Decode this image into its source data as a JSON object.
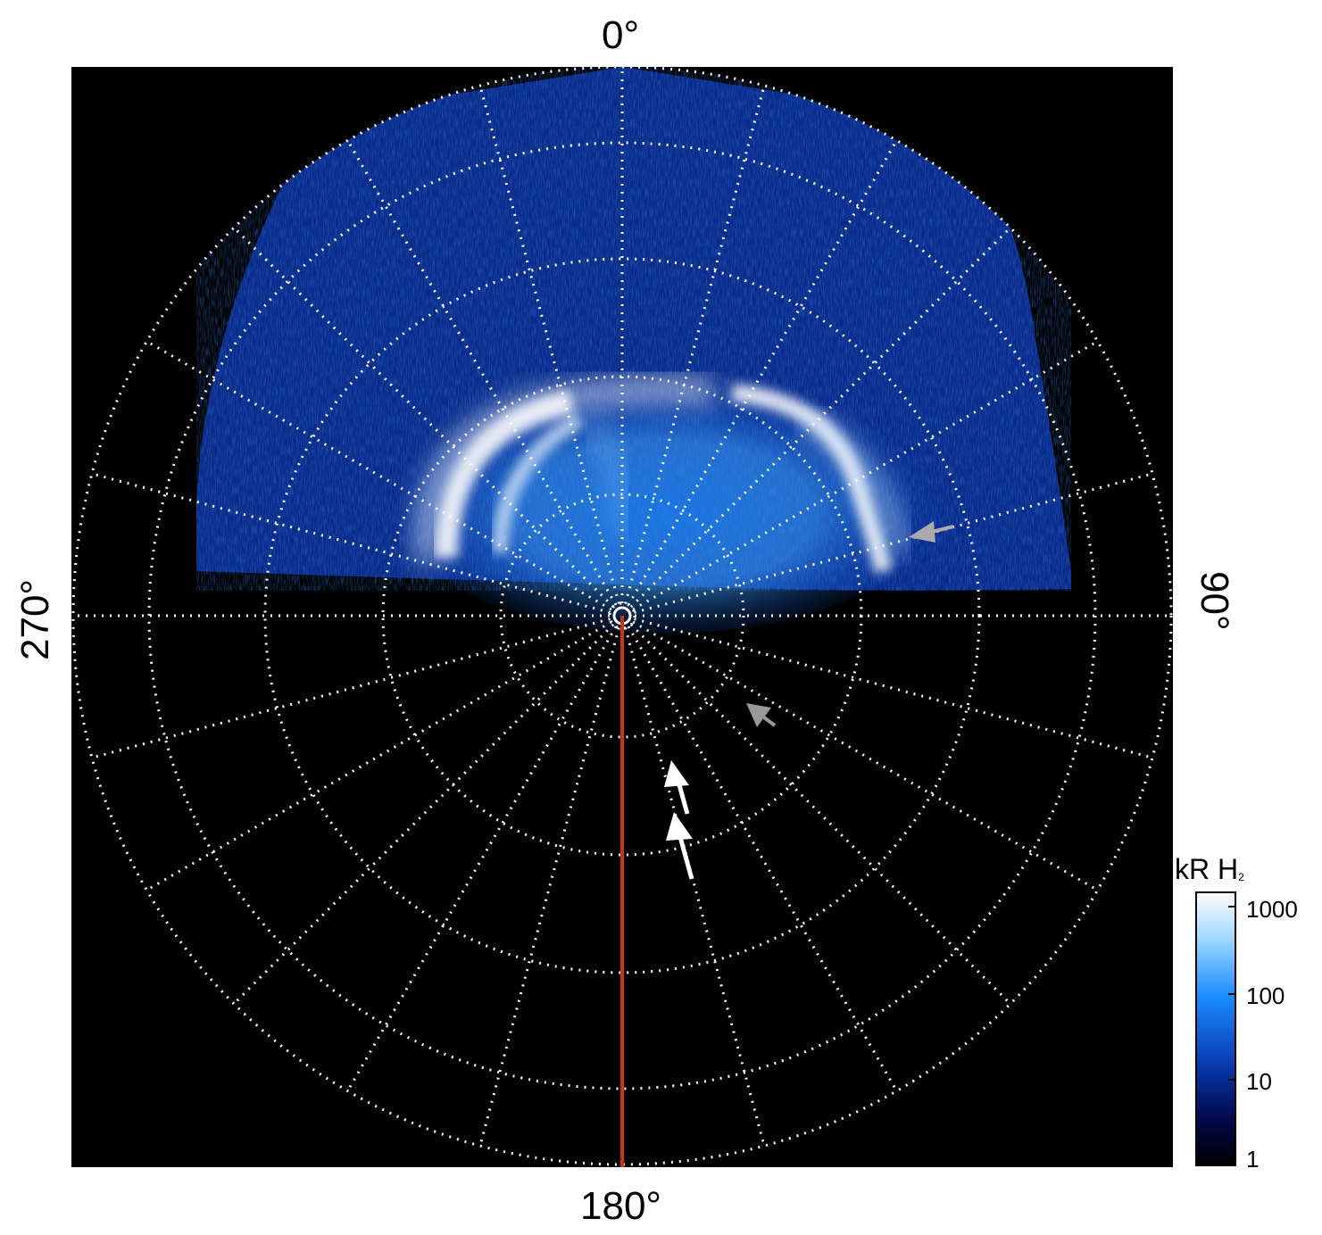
{
  "view": {
    "type": "polar auroral projection",
    "background": "#000000",
    "grid_color": "#ffffff",
    "meridian_color": "#cc3311"
  },
  "labels": {
    "top": "0°",
    "bottom": "180°",
    "left": "270°",
    "right": "90°"
  },
  "colorbar": {
    "title": "kR H",
    "title_sub": "2",
    "scale": "log",
    "ticks": [
      "1000",
      "100",
      "10",
      "1"
    ],
    "colors": [
      "#ffffff",
      "#99d4ff",
      "#1a8cff",
      "#0a3cb4",
      "#020a50",
      "#000000"
    ]
  },
  "arrows": [
    {
      "name": "arrow-gray-right",
      "color": "#aaaaaa"
    },
    {
      "name": "arrow-gray-mid",
      "color": "#999999"
    },
    {
      "name": "arrow-white-upper",
      "color": "#ffffff"
    },
    {
      "name": "arrow-white-lower",
      "color": "#ffffff"
    }
  ]
}
